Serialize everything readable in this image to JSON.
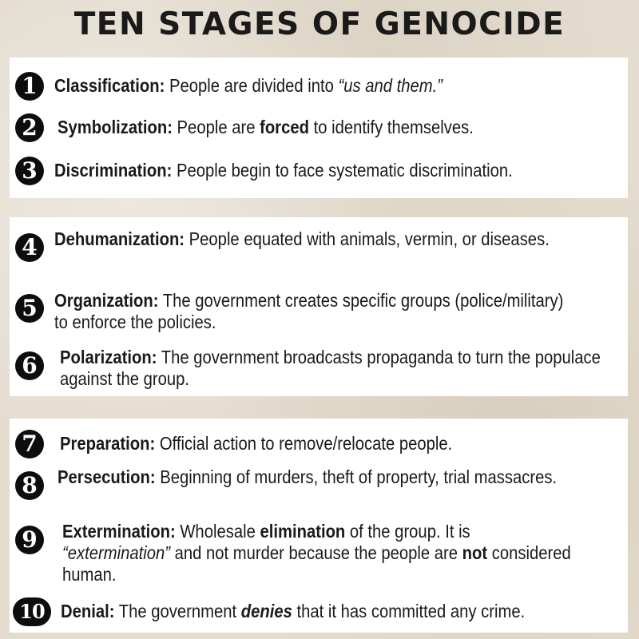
{
  "title": "TEN STAGES OF GENOCIDE",
  "stages": [
    {
      "num": "1",
      "term": "Classification:",
      "parts": [
        {
          "t": " People are divided into "
        },
        {
          "t": "“us and them.”",
          "i": true
        }
      ]
    },
    {
      "num": "2",
      "term": "Symbolization:",
      "parts": [
        {
          "t": " People are "
        },
        {
          "t": "forced",
          "b": true
        },
        {
          "t": " to identify themselves."
        }
      ]
    },
    {
      "num": "3",
      "term": "Discrimination:",
      "parts": [
        {
          "t": " People begin to face systematic discrimination."
        }
      ]
    },
    {
      "num": "4",
      "term": "Dehumanization:",
      "parts": [
        {
          "t": " People equated with animals, vermin, or diseases."
        }
      ]
    },
    {
      "num": "5",
      "term": "Organization:",
      "parts": [
        {
          "t": " The government creates specific groups (police/military) to enforce the policies."
        }
      ]
    },
    {
      "num": "6",
      "term": "Polarization:",
      "parts": [
        {
          "t": " The government broadcasts propaganda to turn the populace against the group."
        }
      ]
    },
    {
      "num": "7",
      "term": "Preparation:",
      "parts": [
        {
          "t": " Official action to remove/relocate people."
        }
      ]
    },
    {
      "num": "8",
      "term": "Persecution:",
      "parts": [
        {
          "t": " Beginning of murders, theft of property, trial massacres."
        }
      ]
    },
    {
      "num": "9",
      "term": "Extermination:",
      "parts": [
        {
          "t": " Wholesale "
        },
        {
          "t": "elimination",
          "b": true
        },
        {
          "t": " of the group. It is "
        },
        {
          "t": "“extermination”",
          "i": true
        },
        {
          "t": " and not murder because the people are "
        },
        {
          "t": "not",
          "b": true
        },
        {
          "t": " considered human."
        }
      ]
    },
    {
      "num": "10",
      "term": "Denial:",
      "parts": [
        {
          "t": " The government "
        },
        {
          "t": "denies",
          "b": true,
          "i": true
        },
        {
          "t": " that it has committed any crime."
        }
      ]
    }
  ]
}
